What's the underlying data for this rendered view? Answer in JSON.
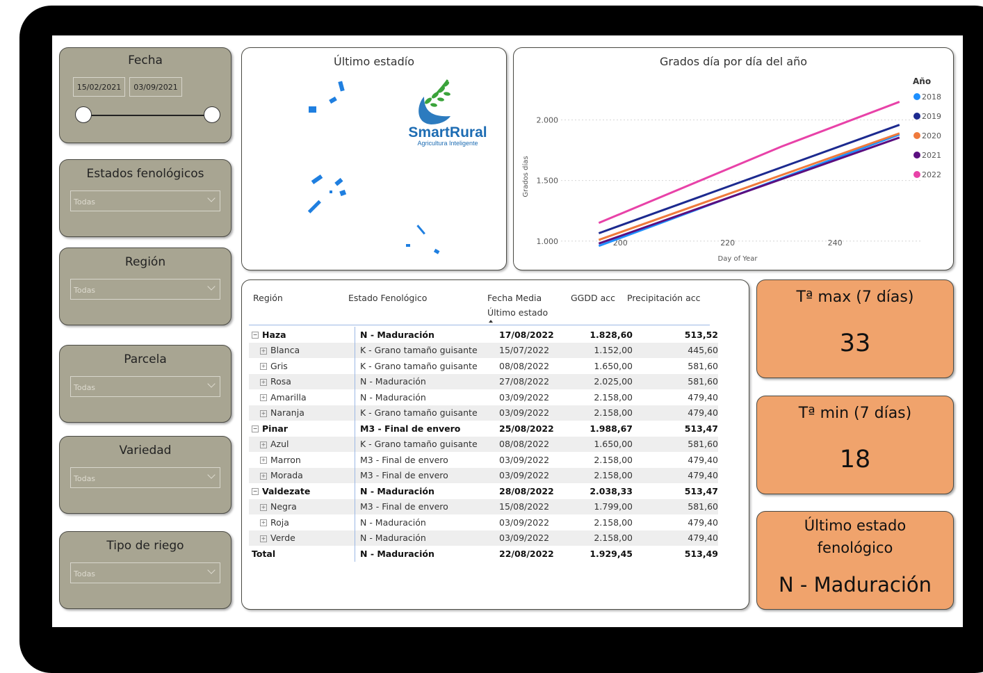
{
  "filters": {
    "fecha": {
      "title": "Fecha",
      "start": "15/02/2021",
      "end": "03/09/2021"
    },
    "estados": {
      "title": "Estados fenológicos",
      "value": "Todas"
    },
    "region": {
      "title": "Región",
      "value": "Todas"
    },
    "parcela": {
      "title": "Parcela",
      "value": "Todas"
    },
    "variedad": {
      "title": "Variedad",
      "value": "Todas"
    },
    "riego": {
      "title": "Tipo de riego",
      "value": "Todas"
    }
  },
  "map": {
    "title": "Último estadío",
    "logo_name": "SmartRural",
    "logo_tagline": "Agricultura Inteligente",
    "parcel_color": "#1f7fe0"
  },
  "chart_data": {
    "type": "line",
    "title": "Grados día por día del año",
    "xlabel": "Day of Year",
    "ylabel": "Grados días",
    "xlim": [
      190,
      255
    ],
    "ylim": [
      930,
      2250
    ],
    "xticks": [
      200,
      220,
      240
    ],
    "yticks": [
      1000,
      1500,
      2000
    ],
    "ytick_labels": [
      "1.000",
      "1.500",
      "2.000"
    ],
    "legend_title": "Año",
    "legend_position": "right",
    "series": [
      {
        "name": "2018",
        "color": "#1e90ff",
        "x": [
          196,
          252
        ],
        "y": [
          960,
          1880
        ]
      },
      {
        "name": "2019",
        "color": "#1c2a8f",
        "x": [
          196,
          252
        ],
        "y": [
          1065,
          1960
        ]
      },
      {
        "name": "2020",
        "color": "#ef7a3c",
        "x": [
          196,
          252
        ],
        "y": [
          1010,
          1890
        ]
      },
      {
        "name": "2021",
        "color": "#5b0f80",
        "x": [
          196,
          252
        ],
        "y": [
          980,
          1855
        ]
      },
      {
        "name": "2022",
        "color": "#e842a8",
        "x": [
          196,
          230,
          252
        ],
        "y": [
          1150,
          1780,
          2150
        ]
      }
    ]
  },
  "table": {
    "headers": [
      "Región",
      "Estado Fenológico",
      "Fecha Media",
      "Último estado",
      "GGDD acc",
      "Precipitación acc"
    ],
    "rows": [
      {
        "c1": "Haza",
        "c2": "N - Maduración",
        "c3": "17/08/2022",
        "c4": "1.828,60",
        "c5": "513,52"
      },
      {
        "c1": "Blanca",
        "c2": "K - Grano tamaño guisante",
        "c3": "15/07/2022",
        "c4": "1.152,00",
        "c5": "445,60"
      },
      {
        "c1": "Gris",
        "c2": "K - Grano tamaño guisante",
        "c3": "08/08/2022",
        "c4": "1.650,00",
        "c5": "581,60"
      },
      {
        "c1": "Rosa",
        "c2": "N - Maduración",
        "c3": "27/08/2022",
        "c4": "2.025,00",
        "c5": "581,60"
      },
      {
        "c1": "Amarilla",
        "c2": "N - Maduración",
        "c3": "03/09/2022",
        "c4": "2.158,00",
        "c5": "479,40"
      },
      {
        "c1": "Naranja",
        "c2": "K - Grano tamaño guisante",
        "c3": "03/09/2022",
        "c4": "2.158,00",
        "c5": "479,40"
      },
      {
        "c1": "Pinar",
        "c2": "M3 - Final de envero",
        "c3": "25/08/2022",
        "c4": "1.988,67",
        "c5": "513,47"
      },
      {
        "c1": "Azul",
        "c2": "K - Grano tamaño guisante",
        "c3": "08/08/2022",
        "c4": "1.650,00",
        "c5": "581,60"
      },
      {
        "c1": "Marron",
        "c2": "M3 - Final de envero",
        "c3": "03/09/2022",
        "c4": "2.158,00",
        "c5": "479,40"
      },
      {
        "c1": "Morada",
        "c2": "M3 - Final de envero",
        "c3": "03/09/2022",
        "c4": "2.158,00",
        "c5": "479,40"
      },
      {
        "c1": "Valdezate",
        "c2": "N - Maduración",
        "c3": "28/08/2022",
        "c4": "2.038,33",
        "c5": "513,47"
      },
      {
        "c1": "Negra",
        "c2": "M3 - Final de envero",
        "c3": "15/08/2022",
        "c4": "1.799,00",
        "c5": "581,60"
      },
      {
        "c1": "Roja",
        "c2": "N - Maduración",
        "c3": "03/09/2022",
        "c4": "2.158,00",
        "c5": "479,40"
      },
      {
        "c1": "Verde",
        "c2": "N - Maduración",
        "c3": "03/09/2022",
        "c4": "2.158,00",
        "c5": "479,40"
      },
      {
        "c1": "Total",
        "c2": "N - Maduración",
        "c3": "22/08/2022",
        "c4": "1.929,45",
        "c5": "513,49"
      }
    ]
  },
  "kpis": {
    "tmax": {
      "label": "Tª max (7 días)",
      "value": "33"
    },
    "tmin": {
      "label": "Tª min (7 días)",
      "value": "18"
    },
    "estado": {
      "label1": "Último estado",
      "label2": "fenológico",
      "value": "N - Maduración"
    },
    "color": "#f0a36c"
  }
}
